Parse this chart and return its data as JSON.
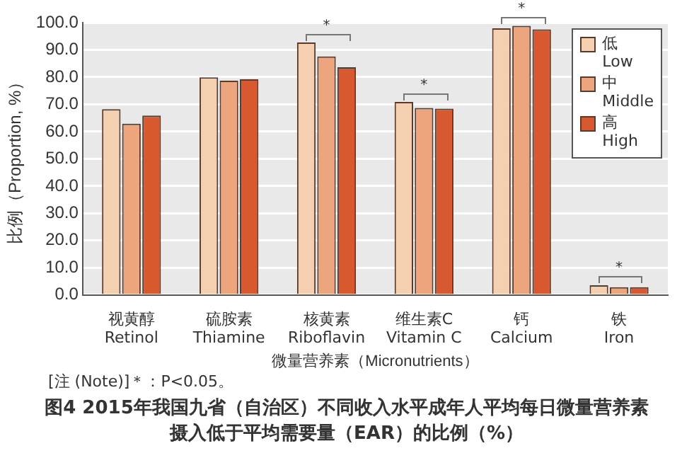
{
  "chart_data": {
    "type": "bar",
    "title": "图4  2015年我国九省（自治区）不同收入水平成年人平均每日微量营养素摄入低于平均需要量（EAR）的比例（%）",
    "xlabel": "微量营养素（Micronutrients）",
    "ylabel": "比例（Proportion, %）",
    "categories": [
      "视黄醇\nRetinol",
      "硫胺素\nThiamine",
      "核黄素\nRiboflavin",
      "维生素C\nVitamin C",
      "钙\nCalcium",
      "铁\nIron"
    ],
    "series": [
      {
        "name": "低\nLow",
        "color": "#f5d0b0",
        "values": [
          68.2,
          79.9,
          92.7,
          70.9,
          97.9,
          3.6
        ]
      },
      {
        "name": "中\nMiddle",
        "color": "#eda57e",
        "values": [
          62.9,
          78.7,
          87.6,
          68.7,
          98.8,
          2.9
        ]
      },
      {
        "name": "高\nHigh",
        "color": "#d8582f",
        "values": [
          65.9,
          79.2,
          83.6,
          68.4,
          97.5,
          2.9
        ]
      }
    ],
    "ylim": [
      0,
      100
    ],
    "yticks": [
      {
        "value": 0,
        "label": "0.0"
      },
      {
        "value": 10,
        "label": "10.0"
      },
      {
        "value": 20,
        "label": "20.0"
      },
      {
        "value": 30,
        "label": "30.0"
      },
      {
        "value": 40,
        "label": "40.0"
      },
      {
        "value": 50,
        "label": "50.0"
      },
      {
        "value": 60,
        "label": "60.0"
      },
      {
        "value": 70,
        "label": "70.0"
      },
      {
        "value": 80,
        "label": "80.0"
      },
      {
        "value": 90,
        "label": "90.0"
      },
      {
        "value": 100,
        "label": "100.0"
      }
    ],
    "grid": "y",
    "legend": "top right",
    "annotations": [
      "*",
      "*",
      "*",
      "*",
      "[注 (Note)]＊：P<0.05。"
    ]
  }
}
